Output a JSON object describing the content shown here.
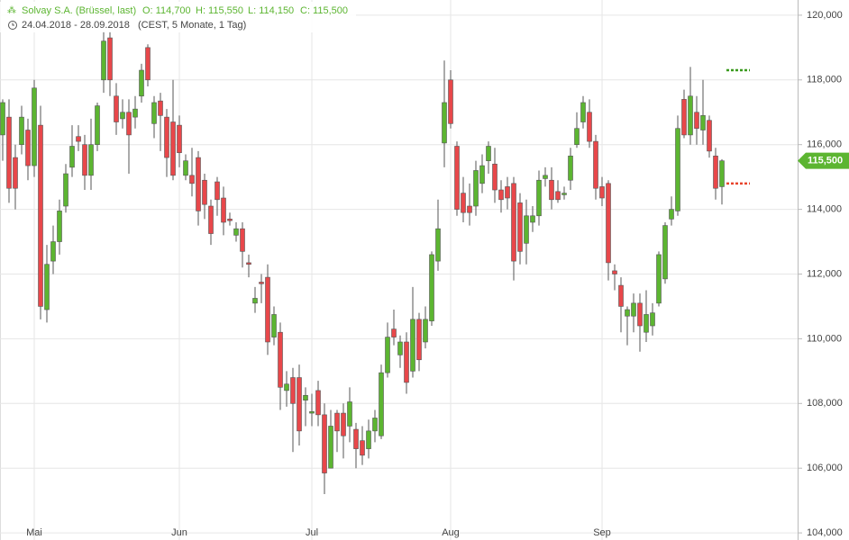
{
  "chart_data": {
    "type": "candlestick",
    "title": "Solvay S.A. (Brüssel, last)",
    "ohlc_labels": [
      "O: 114,700",
      "H: 115,550",
      "L: 114,150",
      "C: 115,500"
    ],
    "subtitle": "24.04.2018 - 28.09.2018",
    "subtitle_note": "(CEST, 5 Monate, 1 Tag)",
    "categories": [
      null,
      null,
      null,
      null,
      null,
      "Mai",
      null,
      null,
      null,
      null,
      null,
      null,
      null,
      null,
      null,
      null,
      null,
      null,
      null,
      null,
      null,
      null,
      null,
      null,
      null,
      null,
      null,
      null,
      "Jun",
      null,
      null,
      null,
      null,
      null,
      null,
      null,
      null,
      null,
      null,
      null,
      null,
      null,
      null,
      null,
      null,
      null,
      null,
      null,
      null,
      "Jul",
      null,
      null,
      null,
      null,
      null,
      null,
      null,
      null,
      null,
      null,
      null,
      null,
      null,
      null,
      null,
      null,
      null,
      null,
      null,
      null,
      null,
      "Aug",
      null,
      null,
      null,
      null,
      null,
      null,
      null,
      null,
      null,
      null,
      null,
      null,
      null,
      null,
      null,
      null,
      null,
      null,
      null,
      null,
      null,
      null,
      null,
      "Sep",
      null,
      null,
      null,
      null,
      null,
      null,
      null,
      null,
      null,
      null,
      null,
      null,
      null,
      null,
      null,
      null,
      null,
      null,
      null
    ],
    "series": [
      {
        "open": [
          116.3,
          116.85,
          115.6,
          116.0,
          116.45,
          115.35,
          116.6,
          110.9,
          112.4,
          113.0,
          114.1,
          115.3,
          116.25,
          116.0,
          115.05,
          116.0,
          118.0,
          119.3,
          117.5,
          116.8,
          117.0,
          116.85,
          117.5,
          119.0,
          116.65,
          117.35,
          116.85,
          116.7,
          116.6,
          115.05,
          115.05,
          115.6,
          114.9,
          114.1,
          114.85,
          114.35,
          113.7,
          113.2,
          113.4,
          112.35,
          111.1,
          111.75,
          111.9,
          110.05,
          110.2,
          108.4,
          108.8,
          108.8,
          108.1,
          107.7,
          108.4,
          107.65,
          106.0,
          107.7,
          107.7,
          107.3,
          107.2,
          106.85,
          106.6,
          107.15,
          107.0,
          108.95,
          110.3,
          109.5,
          109.9,
          109.0,
          110.6,
          109.9,
          110.55,
          112.4,
          116.05,
          118.0,
          115.95,
          114.5,
          114.1,
          114.1,
          114.8,
          115.5,
          115.4,
          114.6,
          114.7,
          114.8,
          114.2,
          112.95,
          113.6,
          113.8,
          114.95,
          114.9,
          114.55,
          114.45,
          114.9,
          116.0,
          116.7,
          117.0,
          116.1,
          114.7,
          114.8,
          112.1,
          111.65,
          110.7,
          110.7,
          111.1,
          110.2,
          110.4,
          111.1,
          111.85,
          113.7,
          113.95,
          117.4,
          116.3,
          117.0,
          116.45,
          116.75,
          115.65,
          114.7
        ],
        "high": [
          117.4,
          117.4,
          116.0,
          117.2,
          116.8,
          118.0,
          117.2,
          112.9,
          113.5,
          114.3,
          115.4,
          116.6,
          116.6,
          116.3,
          116.8,
          117.3,
          119.5,
          119.5,
          117.9,
          117.4,
          117.4,
          117.5,
          118.5,
          119.1,
          117.5,
          117.6,
          117.1,
          118.0,
          116.9,
          115.7,
          115.9,
          115.8,
          115.1,
          114.3,
          115.0,
          114.7,
          113.9,
          113.6,
          113.6,
          112.6,
          111.6,
          112.0,
          112.3,
          111.0,
          110.5,
          109.0,
          109.1,
          109.2,
          108.5,
          108.3,
          108.7,
          108.0,
          107.8,
          107.8,
          108.0,
          108.5,
          107.4,
          107.3,
          107.5,
          107.8,
          109.2,
          110.5,
          110.9,
          110.1,
          110.2,
          111.6,
          110.8,
          111.0,
          112.7,
          114.3,
          118.6,
          118.3,
          116.1,
          115.0,
          114.8,
          115.5,
          115.7,
          116.1,
          115.9,
          114.9,
          115.0,
          115.0,
          114.5,
          114.3,
          114.1,
          115.2,
          115.3,
          115.3,
          114.9,
          114.7,
          115.9,
          117.0,
          117.5,
          117.4,
          116.3,
          115.0,
          114.9,
          112.3,
          111.9,
          111.0,
          111.4,
          111.4,
          111.5,
          111.1,
          112.7,
          113.6,
          114.4,
          116.9,
          117.7,
          118.4,
          117.5,
          118.0,
          116.9,
          115.9,
          115.55
        ],
        "low": [
          115.5,
          114.2,
          114.0,
          115.7,
          114.9,
          115.0,
          110.6,
          110.5,
          112.0,
          112.6,
          113.9,
          115.0,
          115.8,
          114.6,
          114.6,
          115.8,
          117.6,
          117.5,
          116.3,
          116.5,
          115.1,
          116.5,
          117.3,
          117.8,
          116.2,
          115.8,
          115.0,
          114.9,
          115.3,
          114.9,
          114.4,
          113.5,
          113.7,
          112.9,
          113.8,
          113.2,
          113.5,
          113.0,
          112.2,
          111.9,
          110.8,
          111.1,
          109.5,
          109.8,
          107.8,
          107.9,
          106.5,
          106.7,
          107.3,
          107.3,
          107.3,
          105.2,
          106.0,
          106.5,
          106.3,
          106.8,
          106.0,
          106.1,
          106.3,
          106.8,
          106.9,
          108.8,
          109.8,
          109.1,
          108.3,
          108.8,
          109.0,
          109.7,
          110.4,
          112.1,
          115.3,
          116.5,
          113.8,
          113.6,
          113.5,
          113.8,
          114.5,
          115.1,
          114.2,
          113.9,
          114.0,
          111.8,
          112.3,
          112.3,
          113.3,
          113.5,
          114.7,
          114.0,
          114.2,
          114.3,
          114.6,
          115.9,
          116.5,
          115.9,
          114.3,
          114.1,
          111.8,
          111.5,
          110.2,
          109.8,
          110.2,
          109.6,
          109.9,
          110.1,
          111.0,
          111.7,
          113.5,
          113.8,
          116.2,
          116.0,
          116.0,
          116.0,
          115.6,
          114.3,
          114.15
        ],
        "close": [
          117.3,
          114.65,
          114.65,
          116.85,
          115.35,
          117.75,
          111.0,
          112.3,
          113.0,
          113.95,
          115.1,
          115.95,
          116.1,
          115.05,
          116.0,
          117.2,
          119.2,
          118.0,
          116.7,
          117.0,
          116.3,
          117.1,
          118.3,
          118.0,
          117.3,
          116.9,
          115.6,
          115.05,
          115.75,
          115.5,
          114.8,
          113.95,
          114.15,
          113.25,
          114.3,
          113.6,
          113.65,
          113.4,
          112.7,
          112.3,
          111.25,
          111.7,
          109.9,
          110.75,
          108.5,
          108.6,
          108.0,
          107.15,
          108.25,
          107.75,
          107.65,
          105.85,
          107.3,
          107.15,
          107.0,
          108.05,
          106.6,
          106.4,
          107.15,
          107.55,
          108.95,
          110.05,
          110.05,
          109.9,
          108.65,
          110.6,
          109.35,
          110.6,
          112.6,
          113.4,
          117.3,
          116.65,
          114.0,
          113.9,
          113.9,
          115.2,
          115.35,
          115.95,
          114.6,
          114.3,
          114.35,
          112.4,
          112.7,
          113.8,
          113.8,
          114.9,
          115.05,
          114.3,
          114.3,
          114.5,
          115.65,
          116.5,
          117.3,
          116.1,
          114.65,
          114.35,
          112.35,
          112.0,
          111.0,
          110.9,
          111.1,
          110.4,
          110.75,
          110.8,
          112.6,
          113.5,
          114.0,
          116.5,
          116.3,
          117.5,
          116.5,
          116.9,
          115.8,
          114.65,
          115.5
        ]
      }
    ],
    "up_color": "#5cb531",
    "down_color": "#e8474a",
    "ylim": [
      103.78,
      120.47
    ],
    "yticks": [
      {
        "value": 104,
        "label": "104,000"
      },
      {
        "value": 106,
        "label": "106,000"
      },
      {
        "value": 108,
        "label": "108,000"
      },
      {
        "value": 110,
        "label": "110,000"
      },
      {
        "value": 112,
        "label": "112,000"
      },
      {
        "value": 114,
        "label": "114,000"
      },
      {
        "value": 116,
        "label": "116,000"
      },
      {
        "value": 118,
        "label": "118,000"
      },
      {
        "value": 120,
        "label": "120,000"
      }
    ],
    "last_price": {
      "value": 115.5,
      "label": "115,500",
      "color": "#5cb531"
    },
    "levels": [
      {
        "value": 118.3,
        "color": "#3a9a1e"
      },
      {
        "value": 114.8,
        "color": "#e8442c"
      }
    ],
    "grid": true
  }
}
